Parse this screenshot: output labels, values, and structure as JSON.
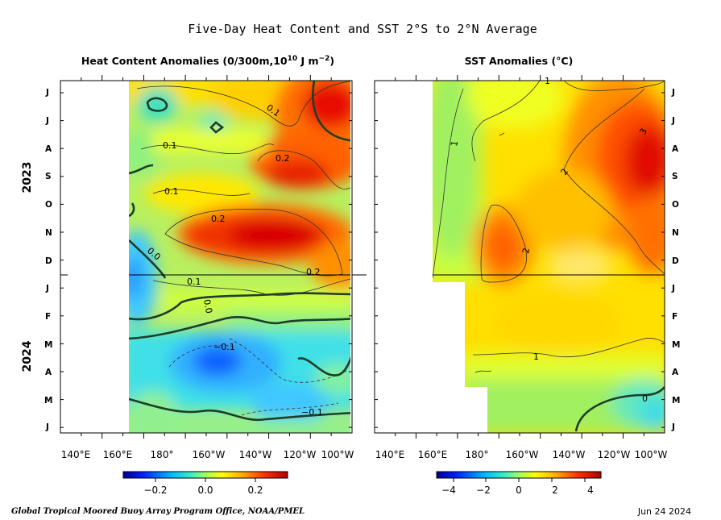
{
  "chart_data": [
    {
      "type": "heatmap",
      "title": "Heat Content Anomalies (0/300m,10",
      "title_sup": "10",
      "title_tail": " J m",
      "title_sup2": "−2",
      "title_close": ")",
      "x_ticks": [
        "140°E",
        "160°E",
        "180°",
        "160°W",
        "140°W",
        "120°W",
        "100°W"
      ],
      "y_months": [
        "J",
        "J",
        "A",
        "S",
        "O",
        "N",
        "D",
        "J",
        "F",
        "M",
        "A",
        "M",
        "J"
      ],
      "years": [
        "2023",
        "2024"
      ],
      "contour_labels": [
        "0.1",
        "0.1",
        "0.2",
        "0.1",
        "0.2",
        "0.2",
        "0.0",
        "0.1",
        "0.0",
        "−0.1",
        "−0.1"
      ],
      "colorbar": {
        "ticks": [
          "−0.2",
          "0.0",
          "0.2"
        ],
        "range": [
          -0.3,
          0.3
        ]
      }
    },
    {
      "type": "heatmap",
      "title": "SST Anomalies (°C)",
      "x_ticks": [
        "140°E",
        "160°E",
        "180°",
        "160°W",
        "140°W",
        "120°W",
        "100°W"
      ],
      "y_months": [
        "J",
        "J",
        "A",
        "S",
        "O",
        "N",
        "D",
        "J",
        "F",
        "M",
        "A",
        "M",
        "J"
      ],
      "contour_labels": [
        "1",
        "1",
        "2",
        "3",
        "2",
        "1",
        "0"
      ],
      "colorbar": {
        "ticks": [
          "−4",
          "−2",
          "0",
          "2",
          "4"
        ],
        "range": [
          -5,
          5
        ]
      }
    }
  ],
  "header": {
    "title": "Five-Day Heat Content and SST  2°S to 2°N Average"
  },
  "footer": {
    "credit": "Global Tropical Moored Buoy Array Program Office, NOAA/PMEL",
    "date": "Jun 24 2024"
  }
}
